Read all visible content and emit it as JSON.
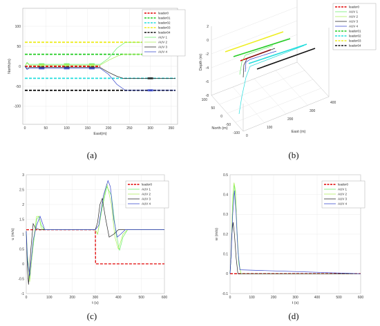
{
  "captions": [
    "(a)",
    "(b)",
    "(c)",
    "(d)"
  ],
  "colors": {
    "leader0": "#e00000",
    "leader01": "#22cc22",
    "leader02": "#22dddd",
    "leader03": "#eeee22",
    "leader04": "#111111",
    "auv1": "#66ee66",
    "auv2": "#aaee55",
    "auv3": "#222222",
    "auv4": "#3344cc"
  },
  "chart_data": [
    {
      "id": "a",
      "type": "line",
      "xlabel": "East(m)",
      "ylabel": "North(m)",
      "xlim": [
        -5,
        365
      ],
      "ylim": [
        -145,
        145
      ],
      "xticks": [
        0,
        50,
        100,
        150,
        200,
        250,
        300,
        350
      ],
      "yticks": [
        100,
        50,
        0,
        -50,
        -100
      ],
      "legend": [
        "leader0",
        "leader01",
        "leader02",
        "leader03",
        "leader04",
        "AUV 1",
        "AUV 2",
        "AUV 3",
        "AUV 4"
      ],
      "series": [
        {
          "name": "leader0",
          "x": [
            0,
            180
          ],
          "y": [
            0,
            0
          ]
        },
        {
          "name": "leader01",
          "x": [
            0,
            360
          ],
          "y": [
            30,
            30
          ]
        },
        {
          "name": "leader02",
          "x": [
            0,
            360
          ],
          "y": [
            -30,
            -30
          ]
        },
        {
          "name": "leader03",
          "x": [
            0,
            360
          ],
          "y": [
            60,
            60
          ]
        },
        {
          "name": "leader04",
          "x": [
            0,
            360
          ],
          "y": [
            -60,
            -60
          ]
        },
        {
          "name": "AUV 1",
          "x": [
            0,
            5,
            10,
            180,
            200,
            220,
            240,
            360
          ],
          "y": [
            0,
            10,
            5,
            5,
            20,
            45,
            60,
            60
          ]
        },
        {
          "name": "AUV 2",
          "x": [
            0,
            5,
            10,
            180,
            200,
            220,
            235,
            360
          ],
          "y": [
            0,
            8,
            3,
            3,
            15,
            25,
            30,
            30
          ]
        },
        {
          "name": "AUV 3",
          "x": [
            0,
            5,
            10,
            180,
            200,
            220,
            235,
            360
          ],
          "y": [
            0,
            -5,
            -3,
            -3,
            -15,
            -25,
            -30,
            -30
          ]
        },
        {
          "name": "AUV 4",
          "x": [
            0,
            5,
            10,
            180,
            200,
            220,
            240,
            360
          ],
          "y": [
            0,
            -8,
            -5,
            -5,
            -20,
            -45,
            -60,
            -60
          ]
        }
      ]
    },
    {
      "id": "b",
      "type": "line",
      "xlabel": "East (m)",
      "ylabel": "North (m)",
      "zlabel": "Depth (m)",
      "xticks": [
        0,
        100,
        200,
        300,
        400
      ],
      "yticks": [
        -100,
        -50,
        0,
        50,
        100
      ],
      "zticks": [
        2,
        0,
        -2,
        -4,
        -6,
        -8
      ],
      "legend": [
        "leader0",
        "AUV 1",
        "AUV 2",
        "AUV 3",
        "AUV 4",
        "leader01",
        "leader02",
        "leader03",
        "leader04"
      ]
    },
    {
      "id": "c",
      "type": "line",
      "xlabel": "t (s)",
      "ylabel": "u (m/s)",
      "xlim": [
        0,
        600
      ],
      "ylim": [
        -1,
        3
      ],
      "xticks": [
        0,
        100,
        200,
        300,
        400,
        500,
        600
      ],
      "yticks": [
        3,
        2.5,
        2,
        1.5,
        1,
        0.5,
        0,
        -0.5,
        -1
      ],
      "legend": [
        "leader0",
        "AUV 1",
        "AUV 2",
        "AUV 3",
        "AUV 4"
      ],
      "series": [
        {
          "name": "leader0",
          "x": [
            0,
            300,
            301,
            600
          ],
          "y": [
            1.15,
            1.15,
            0,
            0
          ]
        },
        {
          "name": "AUV 1",
          "x": [
            0,
            5,
            15,
            30,
            45,
            55,
            65,
            80,
            300,
            310,
            330,
            350,
            370,
            390,
            405,
            420,
            440,
            600
          ],
          "y": [
            1.1,
            0.3,
            -0.5,
            0.6,
            1.5,
            1.6,
            1.3,
            1.15,
            1.15,
            1.0,
            1.9,
            2.6,
            2.3,
            1.0,
            0.45,
            0.9,
            1.15,
            1.15
          ]
        },
        {
          "name": "AUV 2",
          "x": [
            0,
            5,
            15,
            30,
            45,
            55,
            65,
            80,
            300,
            310,
            330,
            350,
            370,
            385,
            400,
            420,
            440,
            600
          ],
          "y": [
            1.1,
            0.2,
            -0.6,
            0.7,
            1.6,
            1.6,
            1.2,
            1.15,
            1.15,
            1.0,
            2.0,
            2.7,
            2.0,
            0.9,
            0.5,
            1.0,
            1.15,
            1.15
          ]
        },
        {
          "name": "AUV 3",
          "x": [
            0,
            5,
            10,
            20,
            30,
            40,
            60,
            300,
            310,
            320,
            330,
            345,
            360,
            380,
            400,
            600
          ],
          "y": [
            1.1,
            -0.2,
            -0.7,
            0.5,
            1.35,
            1.2,
            1.15,
            1.15,
            1.4,
            2.0,
            2.2,
            1.5,
            0.9,
            1.0,
            1.15,
            1.15
          ]
        },
        {
          "name": "AUV 4",
          "x": [
            0,
            5,
            15,
            30,
            45,
            60,
            80,
            300,
            315,
            335,
            355,
            365,
            380,
            395,
            410,
            430,
            600
          ],
          "y": [
            1.1,
            0.1,
            -0.4,
            0.8,
            1.3,
            1.6,
            1.15,
            1.15,
            1.3,
            2.3,
            2.8,
            2.6,
            1.5,
            0.9,
            1.0,
            1.15,
            1.15
          ]
        }
      ]
    },
    {
      "id": "d",
      "type": "line",
      "xlabel": "t (s)",
      "ylabel": "w (m/s)",
      "xlim": [
        0,
        600
      ],
      "ylim": [
        -0.1,
        0.5
      ],
      "xticks": [
        0,
        100,
        200,
        300,
        400,
        500,
        600
      ],
      "yticks": [
        0.5,
        0.4,
        0.3,
        0.2,
        0.1,
        0,
        -0.1
      ],
      "legend": [
        "leader0",
        "AUV 1",
        "AUV 2",
        "AUV 3",
        "AUV 4"
      ],
      "series": [
        {
          "name": "leader0",
          "x": [
            0,
            600
          ],
          "y": [
            0,
            0
          ]
        },
        {
          "name": "AUV 1",
          "x": [
            0,
            5,
            12,
            18,
            25,
            32,
            40,
            50,
            600
          ],
          "y": [
            0,
            0.1,
            0.35,
            0.45,
            0.4,
            0.2,
            0.05,
            0,
            0
          ]
        },
        {
          "name": "AUV 2",
          "x": [
            0,
            5,
            12,
            18,
            25,
            32,
            40,
            50,
            600
          ],
          "y": [
            0,
            0.12,
            0.38,
            0.46,
            0.42,
            0.22,
            0.06,
            0,
            0
          ]
        },
        {
          "name": "AUV 3",
          "x": [
            0,
            4,
            8,
            14,
            20,
            28,
            36,
            600
          ],
          "y": [
            0,
            0.08,
            0.2,
            0.26,
            0.2,
            0.08,
            0,
            0
          ]
        },
        {
          "name": "AUV 4",
          "x": [
            0,
            5,
            12,
            20,
            28,
            36,
            45,
            600
          ],
          "y": [
            0,
            0.1,
            0.3,
            0.42,
            0.3,
            0.12,
            0.02,
            0
          ]
        }
      ]
    }
  ]
}
